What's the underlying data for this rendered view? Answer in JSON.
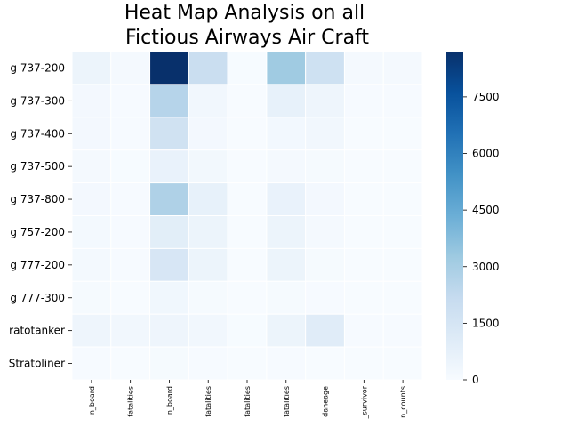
{
  "chart_data": {
    "type": "heatmap",
    "title_lines": [
      "Heat Map Analysis on all",
      "Fictious Airways Air Craft"
    ],
    "rows": [
      "g 737-200",
      "g 737-300",
      "g 737-400",
      "g 737-500",
      "g 737-800",
      "g 757-200",
      "g 777-200",
      "g 777-300",
      "ratotanker",
      "Stratoliner"
    ],
    "columns": [
      "n_board",
      "fatalities",
      "n_board",
      "fatalities",
      "fatalities",
      "fatalities",
      "daneage",
      "_survivor",
      "n_counts"
    ],
    "values": [
      [
        500,
        150,
        8700,
        2000,
        30,
        3200,
        1800,
        150,
        150
      ],
      [
        180,
        50,
        2600,
        280,
        10,
        700,
        400,
        50,
        50
      ],
      [
        180,
        50,
        1700,
        180,
        10,
        200,
        280,
        20,
        20
      ],
      [
        120,
        30,
        600,
        220,
        10,
        150,
        100,
        20,
        20
      ],
      [
        180,
        50,
        2800,
        700,
        10,
        600,
        180,
        20,
        20
      ],
      [
        160,
        50,
        900,
        500,
        10,
        500,
        150,
        20,
        20
      ],
      [
        160,
        50,
        1400,
        500,
        10,
        500,
        100,
        20,
        20
      ],
      [
        80,
        20,
        300,
        80,
        10,
        80,
        50,
        10,
        10
      ],
      [
        400,
        280,
        400,
        280,
        30,
        500,
        1000,
        50,
        50
      ],
      [
        60,
        20,
        80,
        50,
        10,
        50,
        20,
        10,
        10
      ]
    ],
    "colorbar": {
      "min": 0,
      "max": 8700,
      "ticks": [
        0,
        1500,
        3000,
        4500,
        6000,
        7500
      ],
      "colormap": "Blues"
    }
  }
}
